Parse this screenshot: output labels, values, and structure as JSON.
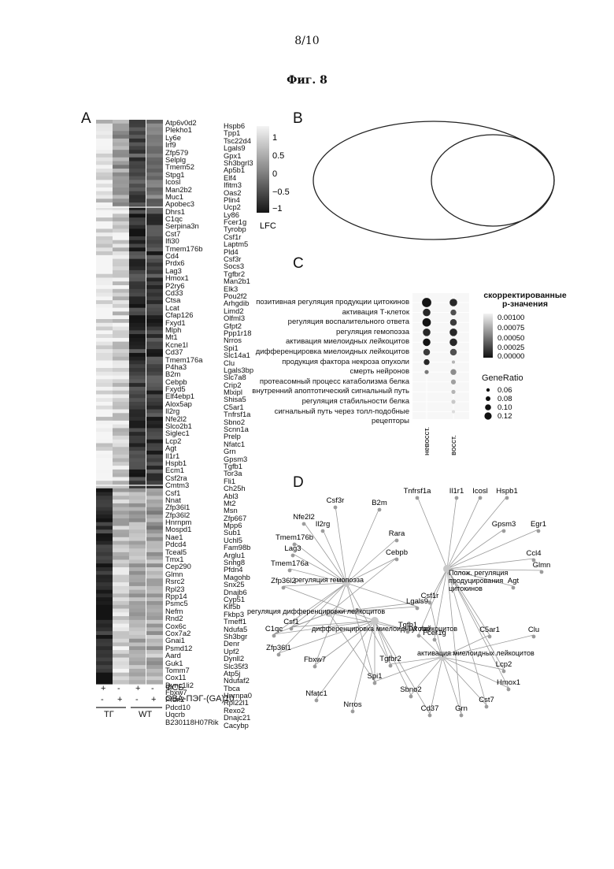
{
  "page_number": "8/10",
  "figure_title": "Фиг. 8",
  "panels": {
    "a": "A",
    "b": "B",
    "c": "C",
    "d": "D"
  },
  "heatmap": {
    "genes_left": [
      "Atp6v0d2",
      "Plekho1",
      "Ly6e",
      "Irf9",
      "Zfp579",
      "Selplg",
      "Tmem52",
      "Stpg1",
      "Icosl",
      "Man2b2",
      "Muc1",
      "Apobec3",
      "Dhrs1",
      "C1qc",
      "Serpina3n",
      "Cst7",
      "Ifi30",
      "Tmem176b",
      "Cd4",
      "Prdx6",
      "Lag3",
      "Hmox1",
      "P2ry6",
      "Cd33",
      "Ctsa",
      "Lcat",
      "Cfap126",
      "Fxyd1",
      "Mlph",
      "Mt1",
      "Kcne1l",
      "Cd37",
      "Tmem176a",
      "P4ha3",
      "B2m",
      "Cebpb",
      "Fxyd5",
      "Elf4ebp1",
      "Alox5ap",
      "Il2rg",
      "Nfe2l2",
      "Slco2b1",
      "Siglec1",
      "Lcp2",
      "Agt",
      "Il1r1",
      "Hspb1",
      "Ecm1",
      "Csf2ra",
      "Cmtm3",
      "Csf1",
      "Nnat",
      "Zfp36l1",
      "Zfp36l2",
      "Hnrnpm",
      "Mospd1",
      "Nae1",
      "Pdcd4",
      "Tceal5",
      "Tmx1",
      "Cep290",
      "Glmn",
      "Rsrc2",
      "Rpl23",
      "Rpp14",
      "Psmc5",
      "Nefm",
      "Rnd2",
      "Cox6c",
      "Cox7a2",
      "Gnai1",
      "Psmd12",
      "Aard",
      "Guk1",
      "Tomm7",
      "Cox11",
      "Dync1li2",
      "Fbxw7",
      "Pfdn2",
      "Pdcd10",
      "Uqcrb",
      "B230118H07Rik"
    ],
    "genes_right": [
      "Hspb6",
      "Tpp1",
      "Tsc22d4",
      "Lgals9",
      "Gpx1",
      "Sh3bgrl3",
      "Ap5b1",
      "Elf4",
      "Ifitm3",
      "Oas2",
      "Plin4",
      "Ucp2",
      "Ly86",
      "Fcer1g",
      "Tyrobp",
      "Csf1r",
      "Laptm5",
      "Pld4",
      "Csf3r",
      "Socs3",
      "Tgfbr2",
      "Man2b1",
      "Elk3",
      "Pou2f2",
      "Arhgdib",
      "Limd2",
      "Olfml3",
      "Gfpt2",
      "Ppp1r18",
      "Nrros",
      "Spi1",
      "Slc14a1",
      "Clu",
      "Lgals3bp",
      "Slc7a8",
      "Crip2",
      "Mlxipl",
      "Shisa5",
      "C5ar1",
      "Tnfrsf1a",
      "Sbno2",
      "Scnn1a",
      "Prelp",
      "Nfatc1",
      "Grn",
      "Gpsm3",
      "Tgfb1",
      "Tor3a",
      "Fli1",
      "Ch25h",
      "Abl3",
      "Mt2",
      "Msn",
      "Zfp667",
      "Mpp6",
      "Sub1",
      "Uchl5",
      "Fam98b",
      "Arglu1",
      "Snhg8",
      "Pfdn4",
      "Magohb",
      "Snx25",
      "Dnajb6",
      "Cyp51",
      "Klf5b",
      "Fkbp3",
      "Tmeff1",
      "Ndufa5",
      "Sh3bgr",
      "Denr",
      "Upf2",
      "Dynll2",
      "Slc35f3",
      "Atp5j",
      "Ndufaf2",
      "Tbca",
      "Hnrnpa0",
      "Rpl22l1",
      "Rexo2",
      "Dnajc21",
      "Cacybp"
    ],
    "legend_ticks": [
      "1",
      "0.5",
      "0",
      "−0.5",
      "−1"
    ],
    "legend_title": "LFC",
    "cond_pbs": "ФСБ",
    "cond_ova": "ОВА-ПЭГ-(GA)10",
    "pbs_signs": [
      "+",
      "-",
      "+",
      "-"
    ],
    "ova_signs": [
      "-",
      "+",
      "-",
      "+"
    ],
    "group_tg": "ТГ",
    "group_wt": "WT"
  },
  "chart_data": {
    "type": "scatter",
    "x": [
      "невосст.",
      "восст."
    ],
    "y_terms": [
      "позитивная регуляция продукции цитокинов",
      "активация Т-клеток",
      "регуляция воспалительного ответа",
      "регуляция гемопоэза",
      "активация миелоидных лейкоцитов",
      "дифференцировка миелоидных лейкоцитов",
      "продукция фактора некроза опухоли",
      "смерть нейронов",
      "протеасомный процесс катаболизма белка",
      "внутренний апоптотический сигнальный путь",
      "регуляция стабильности белка",
      "сигнальный путь через толл-подобные рецепторы"
    ],
    "legend_p_title": "скорректированные p-значения",
    "legend_p_ticks": [
      "0.00100",
      "0.00075",
      "0.00050",
      "0.00025",
      "0.00000"
    ],
    "legend_gr_title": "GeneRatio",
    "legend_gr_ticks": [
      "0.06",
      "0.08",
      "0.10",
      "0.12"
    ],
    "points": [
      {
        "term": 0,
        "col": 0,
        "ratio": 0.12,
        "p": 0.0
      },
      {
        "term": 0,
        "col": 1,
        "ratio": 0.1,
        "p": 0.0001
      },
      {
        "term": 1,
        "col": 0,
        "ratio": 0.1,
        "p": 0.0001
      },
      {
        "term": 1,
        "col": 1,
        "ratio": 0.08,
        "p": 0.0003
      },
      {
        "term": 2,
        "col": 0,
        "ratio": 0.11,
        "p": 0.0
      },
      {
        "term": 2,
        "col": 1,
        "ratio": 0.09,
        "p": 0.0002
      },
      {
        "term": 3,
        "col": 0,
        "ratio": 0.1,
        "p": 0.0001
      },
      {
        "term": 3,
        "col": 1,
        "ratio": 0.1,
        "p": 0.0001
      },
      {
        "term": 4,
        "col": 0,
        "ratio": 0.1,
        "p": 0.0
      },
      {
        "term": 4,
        "col": 1,
        "ratio": 0.1,
        "p": 0.0001
      },
      {
        "term": 5,
        "col": 0,
        "ratio": 0.09,
        "p": 0.0002
      },
      {
        "term": 5,
        "col": 1,
        "ratio": 0.09,
        "p": 0.0003
      },
      {
        "term": 6,
        "col": 0,
        "ratio": 0.08,
        "p": 0.0001
      },
      {
        "term": 6,
        "col": 1,
        "ratio": 0.05,
        "p": 0.0008
      },
      {
        "term": 7,
        "col": 0,
        "ratio": 0.06,
        "p": 0.0005
      },
      {
        "term": 7,
        "col": 1,
        "ratio": 0.08,
        "p": 0.0006
      },
      {
        "term": 8,
        "col": 1,
        "ratio": 0.07,
        "p": 0.0007
      },
      {
        "term": 9,
        "col": 1,
        "ratio": 0.06,
        "p": 0.0008
      },
      {
        "term": 10,
        "col": 1,
        "ratio": 0.06,
        "p": 0.0009
      },
      {
        "term": 11,
        "col": 1,
        "ratio": 0.05,
        "p": 0.001
      }
    ]
  },
  "network": {
    "hubs": [
      "регуляция гемопоэза",
      "Полож. регуляция продуцирования цитокинов",
      "регуляция дифференцировки лейкоцитов",
      "дифференцировка миелоидных лейкоцитов",
      "активация миелоидных лейкоцитов"
    ],
    "genes": [
      "Tnfrsf1a",
      "Il1r1",
      "Icosl",
      "Hspb1",
      "Csf3r",
      "B2m",
      "Nfe2l2",
      "Il2rg",
      "Gpsm3",
      "Egr1",
      "Rara",
      "Tmem176b",
      "Ccl4",
      "Glmn",
      "Lag3",
      "Cebpb",
      "Agt",
      "Tmem176a",
      "Csf1r",
      "Lgals9",
      "Zfp36l2",
      "Tgfb1",
      "Tyrobp",
      "Fcer1g",
      "C5ar1",
      "Clu",
      "Csf1",
      "C1qc",
      "Zfp36l1",
      "Tgfbr2",
      "Fbxw7",
      "Spi1",
      "Lcp2",
      "Hmox1",
      "Nfatc1",
      "Sbno2",
      "Cst7",
      "Nrros",
      "Cd37",
      "Grn"
    ]
  }
}
